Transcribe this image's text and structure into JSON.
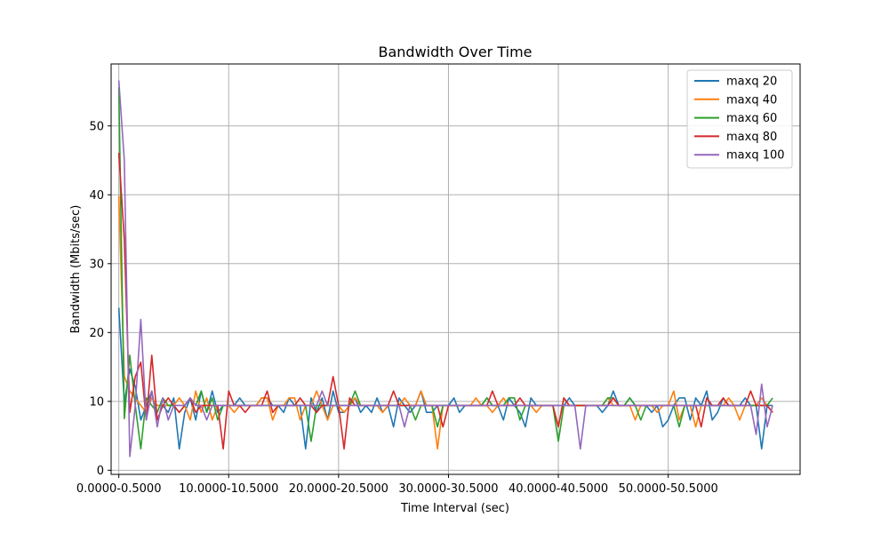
{
  "chart_data": {
    "type": "line",
    "title": "Bandwidth Over Time",
    "xlabel": "Time Interval (sec)",
    "ylabel": "Bandwidth (Mbits/sec)",
    "xlim": [
      -0.7,
      62.0
    ],
    "ylim": [
      -0.6,
      59.0
    ],
    "x_ticks": [
      {
        "value": 0,
        "label": "0.0000-0.5000"
      },
      {
        "value": 10,
        "label": "10.0000-10.5000"
      },
      {
        "value": 20,
        "label": "20.0000-20.5000"
      },
      {
        "value": 30,
        "label": "30.0000-30.5000"
      },
      {
        "value": 40,
        "label": "40.0000-40.5000"
      },
      {
        "value": 50,
        "label": "50.0000-50.5000"
      }
    ],
    "y_ticks": [
      0,
      10,
      20,
      30,
      40,
      50
    ],
    "grid": true,
    "legend_position": "top-right",
    "series": [
      {
        "name": "maxq 20",
        "color": "#1f77b4",
        "values": [
          23.6,
          9.8,
          14.7,
          12.1,
          7.3,
          9.4,
          11.5,
          7.3,
          9.4,
          8.4,
          10.5,
          3.1,
          8.4,
          10.5,
          7.3,
          11.5,
          8.4,
          11.5,
          8.4,
          9.4,
          9.4,
          9.4,
          10.5,
          9.4,
          9.4,
          9.4,
          10.5,
          10.5,
          9.4,
          9.4,
          8.4,
          10.5,
          9.4,
          9.4,
          3.1,
          10.5,
          8.4,
          10.5,
          7.3,
          11.5,
          8.4,
          8.4,
          9.4,
          10.5,
          8.4,
          9.4,
          8.4,
          10.5,
          8.4,
          9.4,
          6.3,
          10.5,
          9.4,
          8.4,
          9.4,
          11.5,
          8.4,
          8.4,
          9.4,
          9.4,
          9.4,
          10.5,
          8.4,
          9.4,
          9.4,
          9.4,
          9.4,
          10.5,
          9.4,
          9.4,
          7.3,
          10.5,
          9.4,
          8.4,
          6.3,
          10.5,
          9.4,
          9.4,
          9.4,
          9.4,
          9.4,
          9.4,
          10.5,
          9.4,
          9.4,
          9.4,
          9.4,
          9.4,
          8.4,
          9.4,
          11.5,
          9.4,
          9.4,
          10.5,
          9.4,
          9.4,
          9.4,
          8.4,
          9.4,
          6.3,
          7.3,
          9.4,
          10.5,
          10.5,
          7.3,
          10.5,
          9.4,
          11.5,
          7.3,
          8.4,
          10.5,
          9.4,
          9.4,
          9.4,
          10.5,
          9.4,
          9.4,
          3.1,
          9.4,
          9.4
        ]
      },
      {
        "name": "maxq 40",
        "color": "#ff7f0e",
        "values": [
          39.8,
          13.6,
          11.5,
          10.5,
          9.4,
          8.4,
          10.5,
          9.4,
          9.4,
          9.4,
          9.4,
          10.5,
          9.4,
          7.3,
          11.5,
          8.4,
          10.5,
          7.3,
          9.4,
          9.4,
          9.4,
          8.4,
          9.4,
          9.4,
          9.4,
          9.4,
          10.5,
          10.5,
          7.3,
          9.4,
          9.4,
          10.5,
          10.5,
          7.3,
          9.4,
          9.4,
          11.5,
          9.4,
          7.3,
          9.4,
          9.4,
          8.4,
          9.4,
          10.5,
          9.4,
          9.4,
          9.4,
          9.4,
          8.4,
          9.4,
          9.4,
          9.4,
          10.5,
          9.4,
          9.4,
          11.5,
          9.4,
          9.4,
          3.1,
          9.4,
          9.4,
          9.4,
          9.4,
          9.4,
          9.4,
          10.5,
          9.4,
          9.4,
          8.4,
          9.4,
          10.5,
          9.4,
          9.4,
          9.4,
          9.4,
          9.4,
          8.4,
          9.4,
          9.4,
          9.4,
          6.3,
          10.5,
          9.4,
          9.4,
          9.4,
          9.4,
          9.4,
          9.4,
          9.4,
          10.5,
          9.4,
          9.4,
          9.4,
          9.4,
          7.3,
          9.4,
          9.4,
          9.4,
          8.4,
          9.4,
          9.4,
          11.5,
          7.3,
          9.4,
          9.4,
          6.3,
          9.4,
          9.4,
          9.4,
          9.4,
          9.4,
          10.5,
          9.4,
          7.3,
          9.4,
          9.4,
          9.4,
          10.5,
          9.4,
          8.4
        ]
      },
      {
        "name": "maxq 60",
        "color": "#2ca02c",
        "values": [
          55.6,
          7.5,
          16.7,
          9.4,
          3.1,
          10.5,
          9.4,
          8.4,
          10.5,
          9.4,
          9.4,
          8.4,
          9.4,
          10.5,
          9.4,
          11.5,
          8.4,
          10.5,
          7.3,
          9.4,
          9.4,
          9.4,
          9.4,
          9.4,
          9.4,
          9.4,
          9.4,
          9.4,
          9.4,
          9.4,
          9.4,
          9.4,
          9.4,
          9.4,
          9.4,
          4.2,
          9.4,
          9.4,
          9.4,
          9.4,
          9.4,
          9.4,
          9.4,
          11.5,
          9.4,
          9.4,
          9.4,
          9.4,
          9.4,
          9.4,
          9.4,
          9.4,
          9.4,
          9.4,
          7.3,
          9.4,
          9.4,
          9.4,
          6.3,
          9.4,
          9.4,
          9.4,
          9.4,
          9.4,
          9.4,
          9.4,
          9.4,
          10.5,
          9.4,
          9.4,
          9.4,
          10.5,
          10.5,
          7.3,
          9.4,
          9.4,
          9.4,
          9.4,
          9.4,
          9.4,
          4.2,
          9.4,
          9.4,
          9.4,
          9.4,
          9.4,
          9.4,
          9.4,
          9.4,
          10.5,
          10.5,
          9.4,
          9.4,
          10.5,
          9.4,
          7.3,
          9.4,
          9.4,
          9.4,
          9.4,
          9.4,
          9.4,
          6.3,
          9.4,
          9.4,
          9.4,
          9.4,
          9.4,
          9.4,
          9.4,
          9.4,
          9.4,
          9.4,
          9.4,
          9.4,
          9.4,
          9.4,
          9.4,
          9.4,
          10.5
        ]
      },
      {
        "name": "maxq 80",
        "color": "#d62728",
        "values": [
          46.1,
          33.5,
          8.4,
          13.6,
          15.7,
          7.3,
          16.7,
          7.3,
          9.4,
          10.5,
          9.4,
          8.4,
          9.4,
          10.5,
          8.4,
          9.4,
          9.4,
          9.4,
          9.4,
          3.1,
          11.5,
          9.4,
          9.4,
          8.4,
          9.4,
          9.4,
          9.4,
          11.5,
          8.4,
          9.4,
          9.4,
          9.4,
          9.4,
          10.5,
          9.4,
          9.4,
          8.4,
          9.4,
          9.4,
          13.6,
          9.4,
          3.1,
          10.5,
          9.4,
          9.4,
          9.4,
          9.4,
          9.4,
          9.4,
          9.4,
          11.5,
          9.4,
          9.4,
          9.4,
          9.4,
          9.4,
          9.4,
          9.4,
          9.4,
          6.3,
          9.4,
          9.4,
          9.4,
          9.4,
          9.4,
          9.4,
          9.4,
          9.4,
          11.5,
          9.4,
          9.4,
          9.4,
          9.4,
          10.5,
          9.4,
          9.4,
          9.4,
          9.4,
          9.4,
          9.4,
          6.3,
          10.5,
          9.4,
          9.4,
          9.4,
          9.4,
          9.4,
          9.4,
          9.4,
          9.4,
          10.5,
          9.4,
          9.4,
          9.4,
          9.4,
          9.4,
          9.4,
          9.4,
          9.4,
          9.4,
          9.4,
          9.4,
          9.4,
          9.4,
          9.4,
          9.4,
          6.3,
          10.5,
          9.4,
          9.4,
          10.5,
          9.4,
          9.4,
          9.4,
          9.4,
          11.5,
          9.4,
          9.4,
          9.4,
          8.4
        ]
      },
      {
        "name": "maxq 100",
        "color": "#9467bd",
        "values": [
          56.6,
          45.0,
          2.0,
          9.4,
          21.9,
          7.3,
          11.5,
          6.3,
          10.5,
          7.3,
          9.4,
          9.4,
          9.4,
          10.5,
          9.4,
          9.4,
          7.3,
          9.4,
          9.4,
          9.4,
          9.4,
          9.4,
          9.4,
          9.4,
          9.4,
          9.4,
          9.4,
          9.4,
          9.4,
          9.4,
          9.4,
          9.4,
          9.4,
          9.4,
          9.4,
          9.4,
          9.4,
          11.5,
          9.4,
          9.4,
          9.4,
          9.4,
          9.4,
          9.4,
          9.4,
          9.4,
          9.4,
          9.4,
          9.4,
          9.4,
          9.4,
          9.4,
          6.3,
          9.4,
          9.4,
          9.4,
          9.4,
          9.4,
          9.4,
          9.4,
          9.4,
          9.4,
          9.4,
          9.4,
          9.4,
          9.4,
          9.4,
          9.4,
          9.4,
          9.4,
          9.4,
          9.4,
          9.4,
          9.4,
          9.4,
          9.4,
          9.4,
          9.4,
          9.4,
          9.4,
          9.4,
          9.4,
          9.4,
          9.4,
          3.1,
          9.4,
          9.4,
          9.4,
          9.4,
          9.4,
          9.4,
          9.4,
          9.4,
          9.4,
          9.4,
          9.4,
          9.4,
          9.4,
          9.4,
          9.4,
          9.4,
          9.4,
          9.4,
          9.4,
          9.4,
          9.4,
          9.4,
          9.4,
          9.4,
          9.4,
          9.4,
          9.4,
          9.4,
          9.4,
          9.4,
          9.4,
          5.2,
          12.5,
          6.3,
          9.4
        ]
      }
    ],
    "x_step": 0.5
  }
}
